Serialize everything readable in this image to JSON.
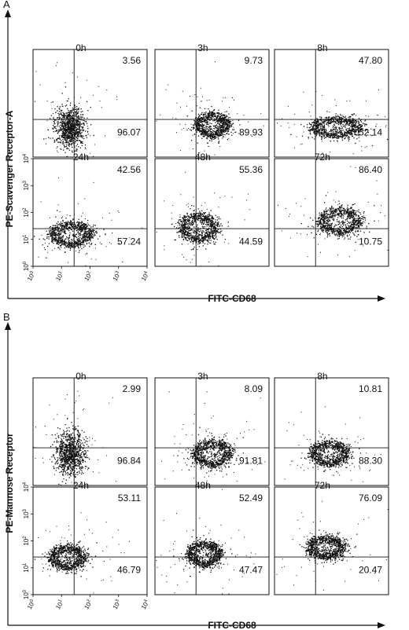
{
  "figure": {
    "panels": [
      {
        "letter": "A",
        "x_axis_label": "FITC-CD68",
        "y_axis_label": "PE-Scavenger Receptor-A",
        "plots": [
          {
            "time": "0h",
            "upper_right": "3.56",
            "lower_right": "96.07"
          },
          {
            "time": "3h",
            "upper_right": "9.73",
            "lower_right": "89.93"
          },
          {
            "time": "8h",
            "upper_right": "47.80",
            "lower_right": "52.14"
          },
          {
            "time": "24h",
            "upper_right": "42.56",
            "lower_right": "57.24"
          },
          {
            "time": "48h",
            "upper_right": "55.36",
            "lower_right": "44.59"
          },
          {
            "time": "72h",
            "upper_right": "86.40",
            "lower_right": "10.75"
          }
        ]
      },
      {
        "letter": "B",
        "x_axis_label": "FITC-CD68",
        "y_axis_label": "PE-Mannose Receptor",
        "plots": [
          {
            "time": "0h",
            "upper_right": "2.99",
            "lower_right": "96.84"
          },
          {
            "time": "3h",
            "upper_right": "8.09",
            "lower_right": "91.81"
          },
          {
            "time": "8h",
            "upper_right": "10.81",
            "lower_right": "88.30"
          },
          {
            "time": "24h",
            "upper_right": "53.11",
            "lower_right": "46.79"
          },
          {
            "time": "48h",
            "upper_right": "52.49",
            "lower_right": "47.47"
          },
          {
            "time": "72h",
            "upper_right": "76.09",
            "lower_right": "20.47"
          }
        ]
      }
    ]
  },
  "chart_data": [
    {
      "type": "scatter",
      "subtype": "flow-cytometry dot plots with quadrant gates",
      "panel": "A",
      "xlabel": "FITC-CD68",
      "ylabel": "PE-Scavenger Receptor-A",
      "scale": "log",
      "axis_ticks": [
        "10^0",
        "10^1",
        "10^2",
        "10^3",
        "10^4"
      ],
      "categories": [
        "0h",
        "3h",
        "8h",
        "24h",
        "48h",
        "72h"
      ],
      "series": [
        {
          "name": "upper right quadrant (%)",
          "values": [
            3.56,
            9.73,
            47.8,
            42.56,
            55.36,
            86.4
          ]
        },
        {
          "name": "lower right quadrant (%)",
          "values": [
            96.07,
            89.93,
            52.14,
            57.24,
            44.59,
            10.75
          ]
        }
      ]
    },
    {
      "type": "scatter",
      "subtype": "flow-cytometry dot plots with quadrant gates",
      "panel": "B",
      "xlabel": "FITC-CD68",
      "ylabel": "PE-Mannose Receptor",
      "scale": "log",
      "axis_ticks": [
        "10^0",
        "10^1",
        "10^2",
        "10^3",
        "10^4"
      ],
      "categories": [
        "0h",
        "3h",
        "8h",
        "24h",
        "48h",
        "72h"
      ],
      "series": [
        {
          "name": "upper right quadrant (%)",
          "values": [
            2.99,
            8.09,
            10.81,
            53.11,
            52.49,
            76.09
          ]
        },
        {
          "name": "lower right quadrant (%)",
          "values": [
            96.84,
            91.81,
            88.3,
            46.79,
            47.47,
            20.47
          ]
        }
      ]
    }
  ]
}
